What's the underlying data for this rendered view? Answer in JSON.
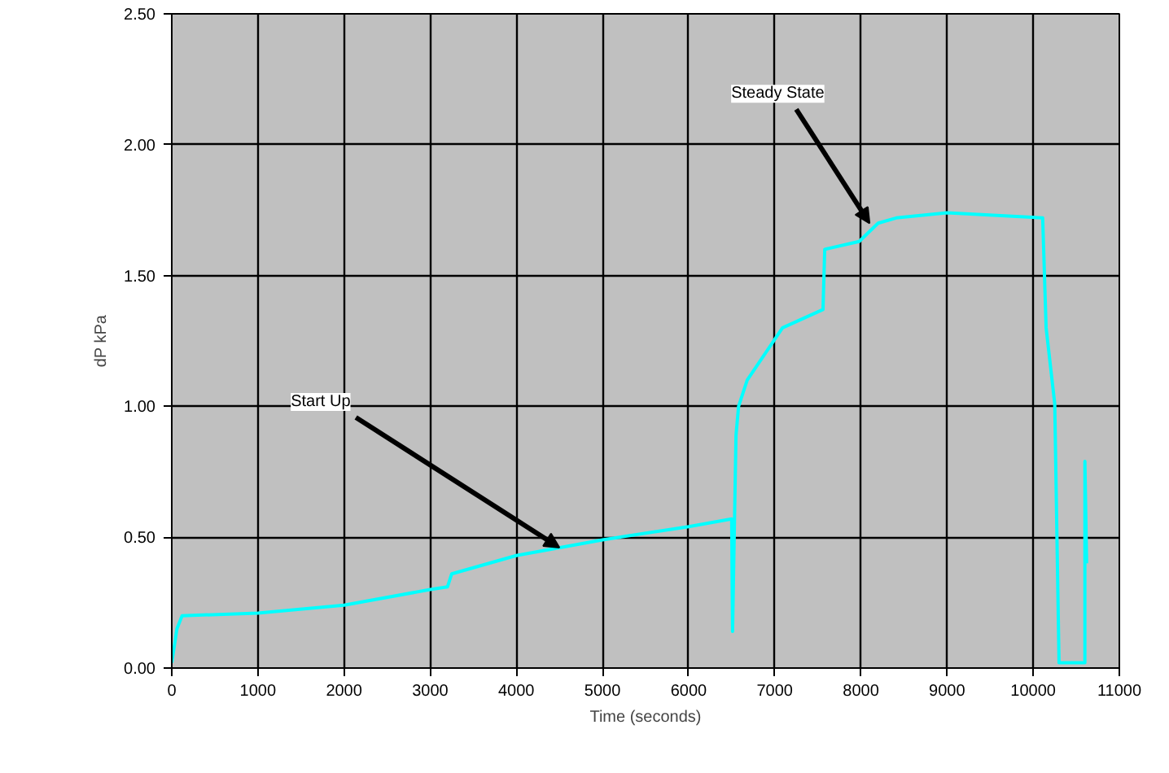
{
  "chart_data": {
    "type": "line",
    "xlabel": "Time (seconds)",
    "ylabel": "dP kPa",
    "xlim": [
      0,
      11000
    ],
    "xticks": [
      0,
      1000,
      2000,
      3000,
      4000,
      5000,
      6000,
      7000,
      8000,
      9000,
      10000,
      11000
    ],
    "ylim": [
      0,
      2.5
    ],
    "yticks": [
      {
        "value": 0,
        "label": "0.00"
      },
      {
        "value": 0.5,
        "label": "0.50"
      },
      {
        "value": 1,
        "label": "1.00"
      },
      {
        "value": 1.5,
        "label": "1.50"
      },
      {
        "value": 2,
        "label": "2.00"
      },
      {
        "value": 2.5,
        "label": "2.50"
      }
    ],
    "grid": true,
    "marker": "none",
    "line_style": "solid",
    "x": [
      0,
      60,
      120,
      1000,
      2000,
      3000,
      3200,
      3250,
      4000,
      5000,
      6000,
      6500,
      6510,
      6550,
      6580,
      6680,
      7090,
      7560,
      7580,
      7980,
      8200,
      8410,
      9000,
      10110,
      10150,
      10250,
      10300,
      10300,
      10600,
      10600,
      10620
    ],
    "series": [
      {
        "color": "#00ffff",
        "values": [
          0.02,
          0.15,
          0.2,
          0.21,
          0.24,
          0.3,
          0.31,
          0.36,
          0.43,
          0.49,
          0.54,
          0.57,
          0.14,
          0.89,
          1.0,
          1.1,
          1.3,
          1.37,
          1.6,
          1.63,
          1.7,
          1.72,
          1.74,
          1.72,
          1.3,
          1.01,
          0.02,
          0.02,
          0.02,
          0.79,
          0.4
        ]
      }
    ],
    "annotations": [
      {
        "text": "Start Up",
        "x": 4500,
        "y": 0.46
      },
      {
        "text": "Steady State",
        "x": 8100,
        "y": 1.7
      }
    ]
  }
}
